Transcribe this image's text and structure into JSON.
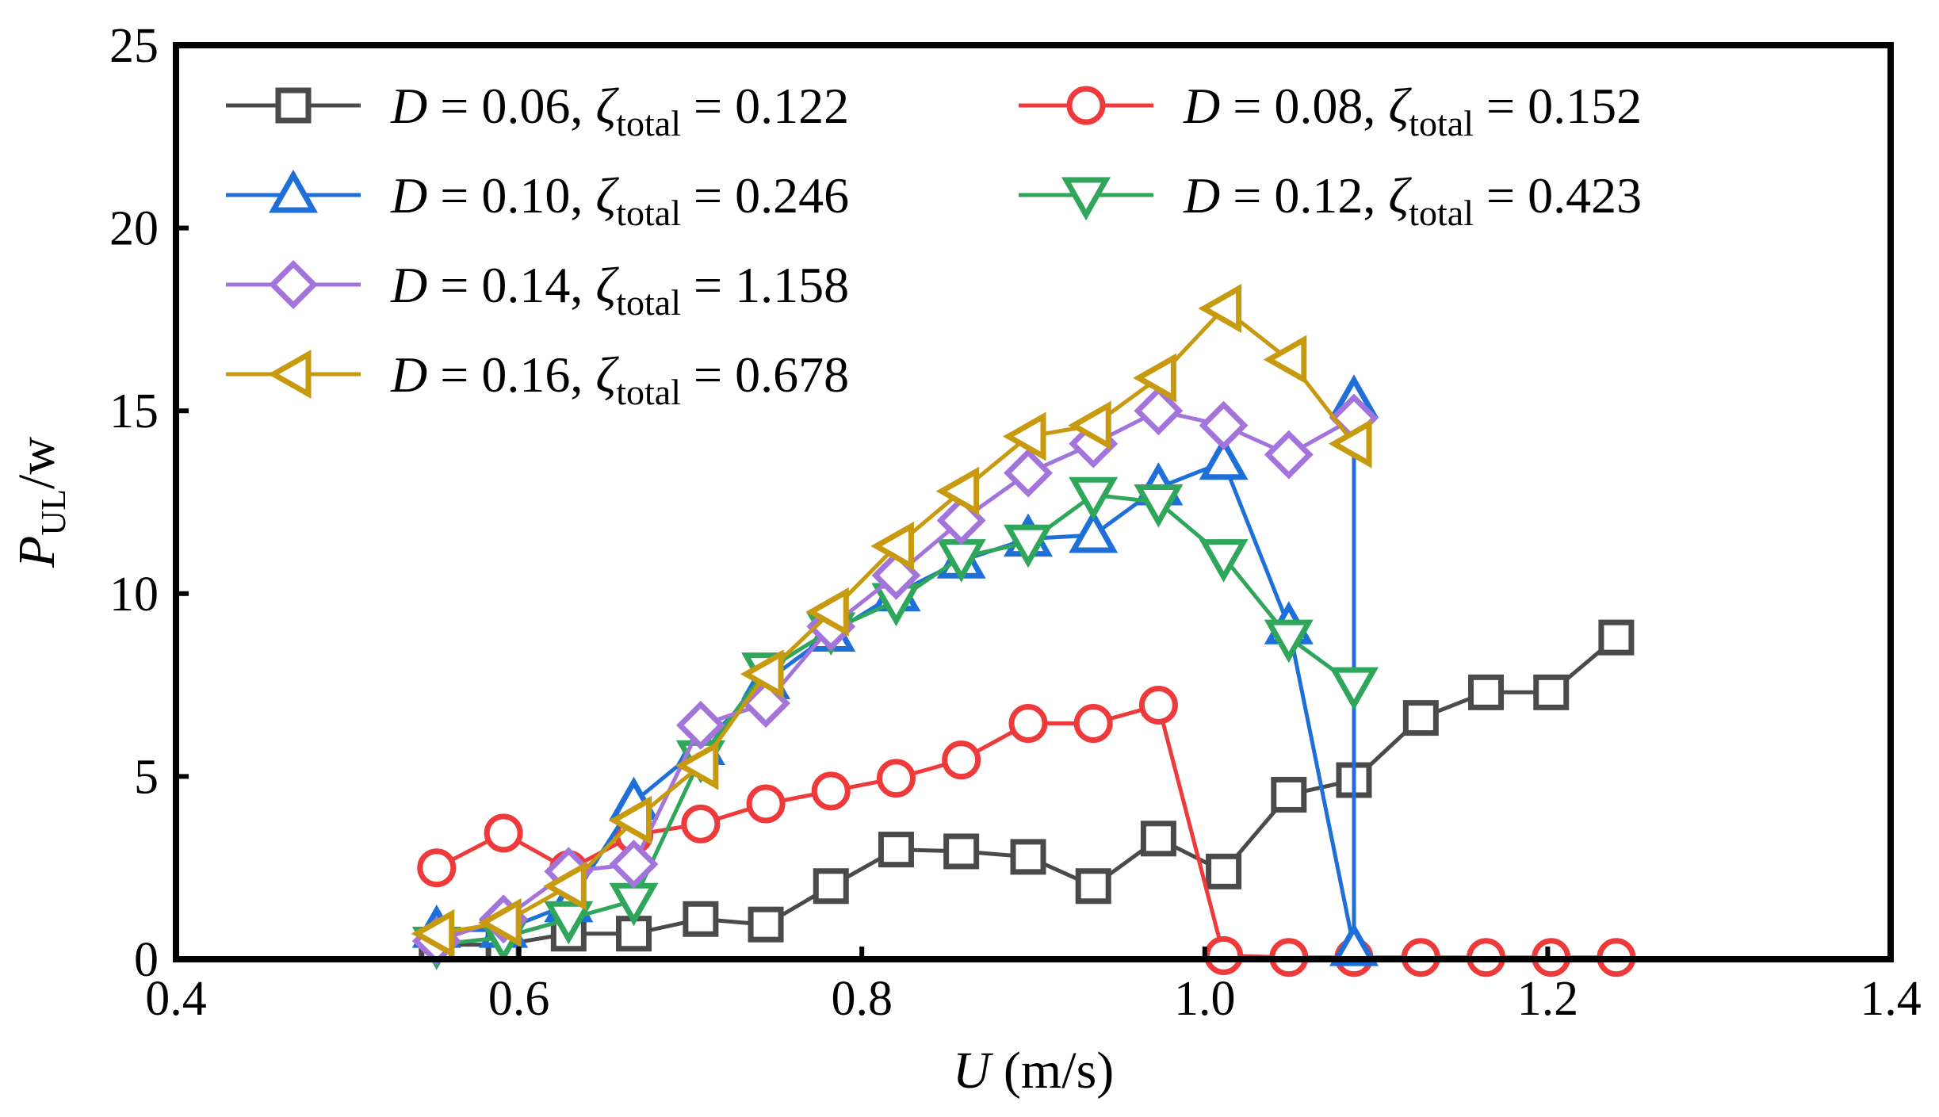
{
  "chart_data": {
    "type": "line",
    "xlabel": {
      "var": "U",
      "unit": " (m/s)"
    },
    "ylabel": {
      "var": "P",
      "sub": "UL",
      "unit": "/w"
    },
    "xlim": [
      0.4,
      1.4
    ],
    "ylim": [
      0,
      25
    ],
    "x_ticks": [
      "0.4",
      "0.6",
      "0.8",
      "1.0",
      "1.2",
      "1.4"
    ],
    "y_ticks": [
      "0",
      "5",
      "10",
      "15",
      "20",
      "25"
    ],
    "grid": false,
    "legend": {
      "placement": "top-left",
      "columns": 2
    },
    "series": [
      {
        "legend": {
          "d_label": "D",
          "d_value": "0.06",
          "zeta": "ζ",
          "zeta_sub": "total",
          "zeta_value": "0.122"
        },
        "color": "#4a4a4a",
        "marker": "square",
        "points": [
          [
            0.552,
            0.4
          ],
          [
            0.591,
            0.4
          ],
          [
            0.629,
            0.7
          ],
          [
            0.667,
            0.7
          ],
          [
            0.706,
            1.1
          ],
          [
            0.744,
            0.95
          ],
          [
            0.782,
            2.0
          ],
          [
            0.82,
            3.0
          ],
          [
            0.858,
            2.95
          ],
          [
            0.897,
            2.8
          ],
          [
            0.935,
            2.0
          ],
          [
            0.973,
            3.3
          ],
          [
            1.011,
            2.4
          ],
          [
            1.049,
            4.5
          ],
          [
            1.087,
            4.9
          ],
          [
            1.126,
            6.6
          ],
          [
            1.164,
            7.3
          ],
          [
            1.202,
            7.3
          ],
          [
            1.24,
            8.8
          ]
        ]
      },
      {
        "legend": {
          "d_label": "D",
          "d_value": "0.08",
          "zeta": "ζ",
          "zeta_sub": "total",
          "zeta_value": "0.152"
        },
        "color": "#ee3a3a",
        "marker": "circle",
        "points": [
          [
            0.552,
            2.5
          ],
          [
            0.591,
            3.45
          ],
          [
            0.629,
            2.45
          ],
          [
            0.667,
            3.4
          ],
          [
            0.706,
            3.7
          ],
          [
            0.744,
            4.25
          ],
          [
            0.782,
            4.6
          ],
          [
            0.82,
            4.95
          ],
          [
            0.858,
            5.45
          ],
          [
            0.897,
            6.45
          ],
          [
            0.935,
            6.45
          ],
          [
            0.973,
            6.95
          ],
          [
            1.011,
            0.1
          ],
          [
            1.049,
            0.05
          ],
          [
            1.087,
            0.05
          ],
          [
            1.126,
            0.05
          ],
          [
            1.164,
            0.05
          ],
          [
            1.202,
            0.05
          ],
          [
            1.24,
            0.05
          ]
        ]
      },
      {
        "legend": {
          "d_label": "D",
          "d_value": "0.10",
          "zeta": "ζ",
          "zeta_sub": "total",
          "zeta_value": "0.246"
        },
        "color": "#1f6fd8",
        "marker": "triangle-up",
        "points": [
          [
            0.552,
            0.8
          ],
          [
            0.591,
            0.8
          ],
          [
            0.629,
            1.5
          ],
          [
            0.667,
            4.3
          ],
          [
            0.706,
            5.8
          ],
          [
            0.744,
            7.6
          ],
          [
            0.782,
            8.9
          ],
          [
            0.82,
            10.0
          ],
          [
            0.858,
            10.9
          ],
          [
            0.897,
            11.5
          ],
          [
            0.935,
            11.6
          ],
          [
            0.973,
            12.9
          ],
          [
            1.011,
            13.6
          ],
          [
            1.049,
            9.1
          ],
          [
            1.087,
            0.3
          ],
          [
            1.087,
            15.3
          ]
        ]
      },
      {
        "legend": {
          "d_label": "D",
          "d_value": "0.12",
          "zeta": "ζ",
          "zeta_sub": "total",
          "zeta_value": "0.423"
        },
        "color": "#2fa65a",
        "marker": "triangle-down",
        "points": [
          [
            0.552,
            0.4
          ],
          [
            0.591,
            0.6
          ],
          [
            0.629,
            1.1
          ],
          [
            0.667,
            1.6
          ],
          [
            0.706,
            5.5
          ],
          [
            0.744,
            7.9
          ],
          [
            0.782,
            9.0
          ],
          [
            0.82,
            9.8
          ],
          [
            0.858,
            11.0
          ],
          [
            0.897,
            11.4
          ],
          [
            0.935,
            12.7
          ],
          [
            0.973,
            12.5
          ],
          [
            1.011,
            11.0
          ],
          [
            1.049,
            8.8
          ],
          [
            1.087,
            7.5
          ]
        ]
      },
      {
        "legend": {
          "d_label": "D",
          "d_value": "0.14",
          "zeta": "ζ",
          "zeta_sub": "total",
          "zeta_value": "1.158"
        },
        "color": "#a374dc",
        "marker": "diamond",
        "points": [
          [
            0.552,
            0.5
          ],
          [
            0.591,
            1.1
          ],
          [
            0.629,
            2.4
          ],
          [
            0.667,
            2.6
          ],
          [
            0.706,
            6.4
          ],
          [
            0.744,
            7.0
          ],
          [
            0.782,
            9.1
          ],
          [
            0.82,
            10.5
          ],
          [
            0.858,
            12.0
          ],
          [
            0.897,
            13.3
          ],
          [
            0.935,
            14.1
          ],
          [
            0.973,
            15.0
          ],
          [
            1.011,
            14.6
          ],
          [
            1.049,
            13.8
          ],
          [
            1.087,
            14.8
          ]
        ]
      },
      {
        "legend": {
          "d_label": "D",
          "d_value": "0.16",
          "zeta": "ζ",
          "zeta_sub": "total",
          "zeta_value": "0.678"
        },
        "color": "#c79a0f",
        "marker": "triangle-left",
        "points": [
          [
            0.552,
            0.7
          ],
          [
            0.591,
            1.0
          ],
          [
            0.629,
            2.0
          ],
          [
            0.667,
            3.8
          ],
          [
            0.706,
            5.3
          ],
          [
            0.744,
            7.8
          ],
          [
            0.782,
            9.5
          ],
          [
            0.82,
            11.3
          ],
          [
            0.858,
            12.8
          ],
          [
            0.897,
            14.3
          ],
          [
            0.935,
            14.6
          ],
          [
            0.973,
            15.9
          ],
          [
            1.011,
            17.8
          ],
          [
            1.049,
            16.4
          ],
          [
            1.087,
            14.1
          ]
        ]
      }
    ]
  }
}
